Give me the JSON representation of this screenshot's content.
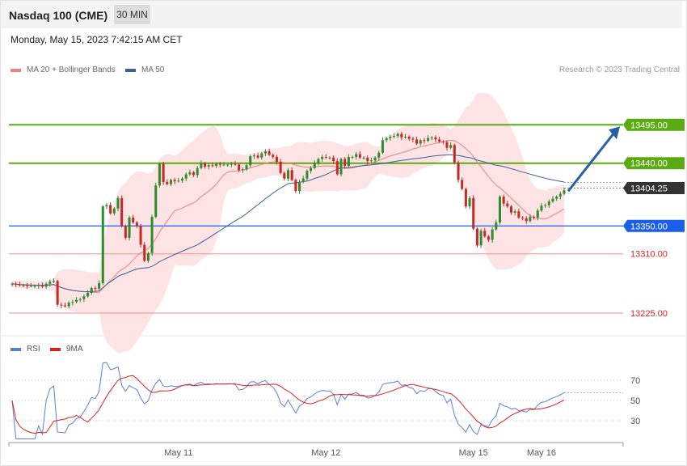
{
  "header": {
    "instrument": "Nasdaq 100 (CME)",
    "timeframe": "30 MIN",
    "datetime": "Monday, May 15, 2023 7:42:15 AM CET"
  },
  "legend": {
    "ma20_label": "MA 20 + Bollinger Bands",
    "ma50_label": "MA 50",
    "ma20_color": "#f08080",
    "ma50_color": "#3a5f9c",
    "credit": "Research © 2023 Trading Central"
  },
  "rsi_legend": {
    "rsi_label": "RSI",
    "ma9_label": "9MA",
    "rsi_color": "#5b7fd8",
    "ma9_color": "#e02020"
  },
  "chart_data": [
    {
      "type": "candlestick",
      "title": "Nasdaq 100 (CME)",
      "price_range": [
        13196,
        13558
      ],
      "levels": [
        {
          "label": "13495.00",
          "value": 13495.0,
          "style": "resistance",
          "color": "#5aaa12"
        },
        {
          "label": "13440.00",
          "value": 13440.0,
          "style": "resistance",
          "color": "#5aaa12"
        },
        {
          "label": "13404.25",
          "value": 13404.25,
          "style": "last",
          "color": "#333333"
        },
        {
          "label": "13350.00",
          "value": 13350.0,
          "style": "pivot",
          "color": "#1a5fe8"
        },
        {
          "label": "13310.00",
          "value": 13310.0,
          "style": "support",
          "color": "#e02020"
        },
        {
          "label": "13225.00",
          "value": 13225.0,
          "style": "support",
          "color": "#e02020"
        }
      ],
      "close": [
        13267,
        13266,
        13265,
        13265,
        13264,
        13264,
        13264,
        13265,
        13263,
        13267,
        13270,
        13271,
        13237,
        13236,
        13235,
        13240,
        13241,
        13244,
        13245,
        13249,
        13254,
        13261,
        13260,
        13268,
        13378,
        13380,
        13368,
        13375,
        13390,
        13350,
        13333,
        13362,
        13355,
        13350,
        13323,
        13300,
        13311,
        13363,
        13408,
        13439,
        13413,
        13410,
        13416,
        13414,
        13415,
        13418,
        13424,
        13427,
        13423,
        13433,
        13440,
        13435,
        13437,
        13436,
        13439,
        13438,
        13438,
        13438,
        13439,
        13438,
        13430,
        13431,
        13437,
        13450,
        13451,
        13448,
        13454,
        13457,
        13452,
        13449,
        13442,
        13426,
        13418,
        13430,
        13416,
        13400,
        13413,
        13418,
        13429,
        13433,
        13440,
        13446,
        13449,
        13448,
        13448,
        13443,
        13424,
        13446,
        13436,
        13449,
        13449,
        13453,
        13448,
        13448,
        13443,
        13444,
        13448,
        13455,
        13473,
        13476,
        13478,
        13479,
        13482,
        13477,
        13478,
        13475,
        13474,
        13468,
        13473,
        13472,
        13476,
        13477,
        13474,
        13471,
        13470,
        13462,
        13466,
        13441,
        13416,
        13403,
        13378,
        13390,
        13346,
        13322,
        13343,
        13335,
        13330,
        13345,
        13355,
        13392,
        13382,
        13378,
        13369,
        13371,
        13362,
        13361,
        13357,
        13363,
        13362,
        13372,
        13379,
        13380,
        13385,
        13389,
        13392,
        13396,
        13401
      ],
      "x_labels": [
        "May 11",
        "May 12",
        "May 15",
        "May 16"
      ]
    },
    {
      "type": "line",
      "title": "RSI",
      "y_ticks": [
        70,
        50,
        30
      ],
      "series": [
        {
          "name": "RSI"
        },
        {
          "name": "9MA"
        }
      ]
    }
  ]
}
